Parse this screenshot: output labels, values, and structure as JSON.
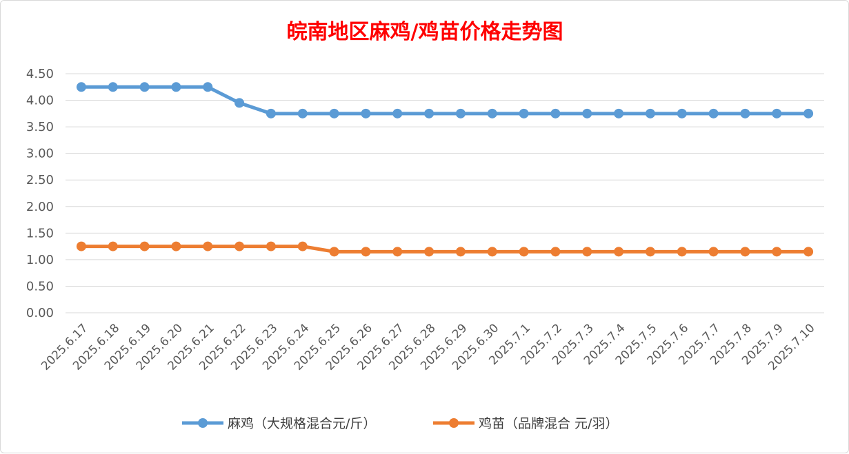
{
  "chart_data": {
    "type": "line",
    "title": "皖南地区麻鸡/鸡苗价格走势图",
    "xlabel": "",
    "ylabel": "",
    "ylim": [
      0,
      4.5
    ],
    "yticks": [
      "0.00",
      "0.50",
      "1.00",
      "1.50",
      "2.00",
      "2.50",
      "3.00",
      "3.50",
      "4.00",
      "4.50"
    ],
    "grid": true,
    "legend_position": "bottom",
    "categories": [
      "2025.6.17",
      "2025.6.18",
      "2025.6.19",
      "2025.6.20",
      "2025.6.21",
      "2025.6.22",
      "2025.6.23",
      "2025.6.24",
      "2025.6.25",
      "2025.6.26",
      "2025.6.27",
      "2025.6.28",
      "2025.6.29",
      "2025.6.30",
      "2025.7.1",
      "2025.7.2",
      "2025.7.3",
      "2025.7.4",
      "2025.7.5",
      "2025.7.6",
      "2025.7.7",
      "2025.7.8",
      "2025.7.9",
      "2025.7.10"
    ],
    "series": [
      {
        "name": "麻鸡（大规格混合元/斤）",
        "color": "#5b9bd5",
        "values": [
          4.25,
          4.25,
          4.25,
          4.25,
          4.25,
          3.95,
          3.75,
          3.75,
          3.75,
          3.75,
          3.75,
          3.75,
          3.75,
          3.75,
          3.75,
          3.75,
          3.75,
          3.75,
          3.75,
          3.75,
          3.75,
          3.75,
          3.75,
          3.75
        ]
      },
      {
        "name": "鸡苗（品牌混合 元/羽）",
        "color": "#ed7d31",
        "values": [
          1.25,
          1.25,
          1.25,
          1.25,
          1.25,
          1.25,
          1.25,
          1.25,
          1.15,
          1.15,
          1.15,
          1.15,
          1.15,
          1.15,
          1.15,
          1.15,
          1.15,
          1.15,
          1.15,
          1.15,
          1.15,
          1.15,
          1.15,
          1.15
        ]
      }
    ]
  }
}
